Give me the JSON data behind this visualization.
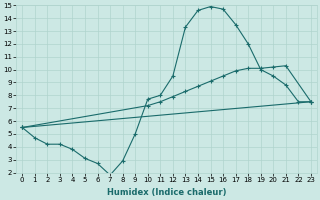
{
  "xlabel": "Humidex (Indice chaleur)",
  "bg_color": "#cce8e4",
  "line_color": "#1a6b6b",
  "grid_color": "#b0d4ce",
  "xlim": [
    -0.5,
    23.5
  ],
  "ylim": [
    2,
    15
  ],
  "xticks": [
    0,
    1,
    2,
    3,
    4,
    5,
    6,
    7,
    8,
    9,
    10,
    11,
    12,
    13,
    14,
    15,
    16,
    17,
    18,
    19,
    20,
    21,
    22,
    23
  ],
  "yticks": [
    2,
    3,
    4,
    5,
    6,
    7,
    8,
    9,
    10,
    11,
    12,
    13,
    14,
    15
  ],
  "curve1_x": [
    0,
    1,
    2,
    3,
    4,
    5,
    6,
    7,
    8,
    9,
    10,
    11,
    12,
    13,
    14,
    15,
    16,
    17,
    18,
    19,
    20,
    21,
    22,
    23
  ],
  "curve1_y": [
    5.5,
    4.7,
    4.2,
    4.2,
    3.8,
    3.1,
    2.7,
    1.8,
    2.9,
    5.0,
    7.7,
    8.0,
    9.5,
    13.3,
    14.6,
    14.9,
    14.7,
    13.5,
    12.0,
    10.0,
    9.5,
    8.8,
    7.5,
    7.5
  ],
  "curve2_x": [
    0,
    10,
    11,
    12,
    13,
    14,
    15,
    16,
    17,
    18,
    19,
    20,
    21,
    23
  ],
  "curve2_y": [
    5.5,
    7.2,
    7.5,
    7.9,
    8.3,
    8.7,
    9.1,
    9.5,
    9.9,
    10.1,
    10.1,
    10.2,
    10.3,
    7.5
  ],
  "curve3_x": [
    0,
    23
  ],
  "curve3_y": [
    5.5,
    7.5
  ],
  "marker_size": 2.5,
  "linewidth": 0.8,
  "tick_fontsize": 5,
  "xlabel_fontsize": 6
}
